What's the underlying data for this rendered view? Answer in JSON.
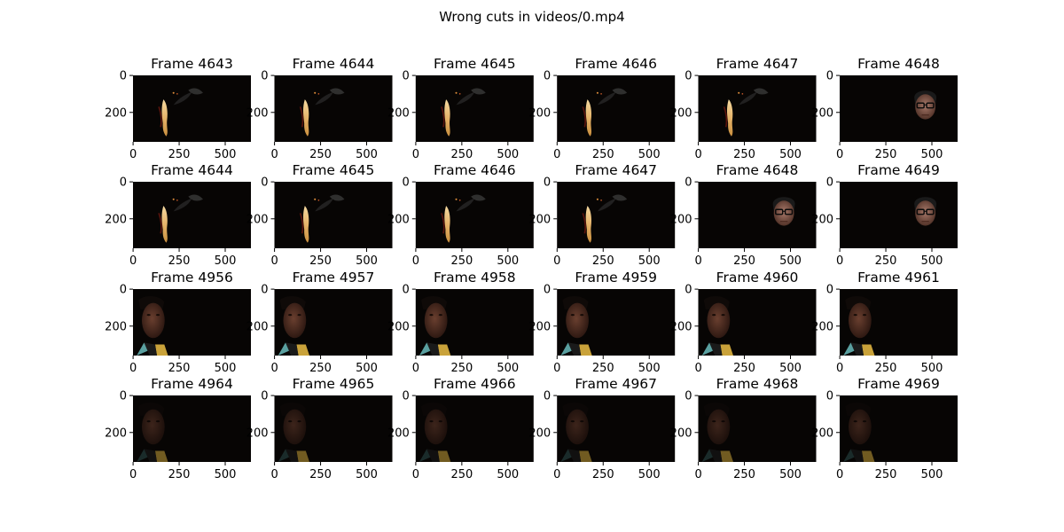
{
  "figure": {
    "title": "Wrong cuts in videos/0.mp4"
  },
  "chart_data": {
    "type": "image-grid",
    "title": "Wrong cuts in videos/0.mp4",
    "rows": 4,
    "cols": 6,
    "x_ticks": [
      "0",
      "250",
      "500"
    ],
    "y_ticks": [
      "0",
      "200"
    ],
    "panels": [
      {
        "title": "Frame 4643",
        "scene": "flame"
      },
      {
        "title": "Frame 4644",
        "scene": "flame"
      },
      {
        "title": "Frame 4645",
        "scene": "flame"
      },
      {
        "title": "Frame 4646",
        "scene": "flame"
      },
      {
        "title": "Frame 4647",
        "scene": "flame"
      },
      {
        "title": "Frame 4648",
        "scene": "glasses-face"
      },
      {
        "title": "Frame 4644",
        "scene": "flame"
      },
      {
        "title": "Frame 4645",
        "scene": "flame"
      },
      {
        "title": "Frame 4646",
        "scene": "flame"
      },
      {
        "title": "Frame 4647",
        "scene": "flame"
      },
      {
        "title": "Frame 4648",
        "scene": "glasses-face"
      },
      {
        "title": "Frame 4649",
        "scene": "glasses-face"
      },
      {
        "title": "Frame 4956",
        "scene": "man-face"
      },
      {
        "title": "Frame 4957",
        "scene": "man-face"
      },
      {
        "title": "Frame 4958",
        "scene": "man-face"
      },
      {
        "title": "Frame 4959",
        "scene": "man-face"
      },
      {
        "title": "Frame 4960",
        "scene": "man-face"
      },
      {
        "title": "Frame 4961",
        "scene": "man-face"
      },
      {
        "title": "Frame 4964",
        "scene": "man-face-dark"
      },
      {
        "title": "Frame 4965",
        "scene": "man-face-dark"
      },
      {
        "title": "Frame 4966",
        "scene": "man-face-dark"
      },
      {
        "title": "Frame 4967",
        "scene": "man-face-dark"
      },
      {
        "title": "Frame 4968",
        "scene": "man-face-dark"
      },
      {
        "title": "Frame 4969",
        "scene": "man-face-dark"
      }
    ]
  }
}
